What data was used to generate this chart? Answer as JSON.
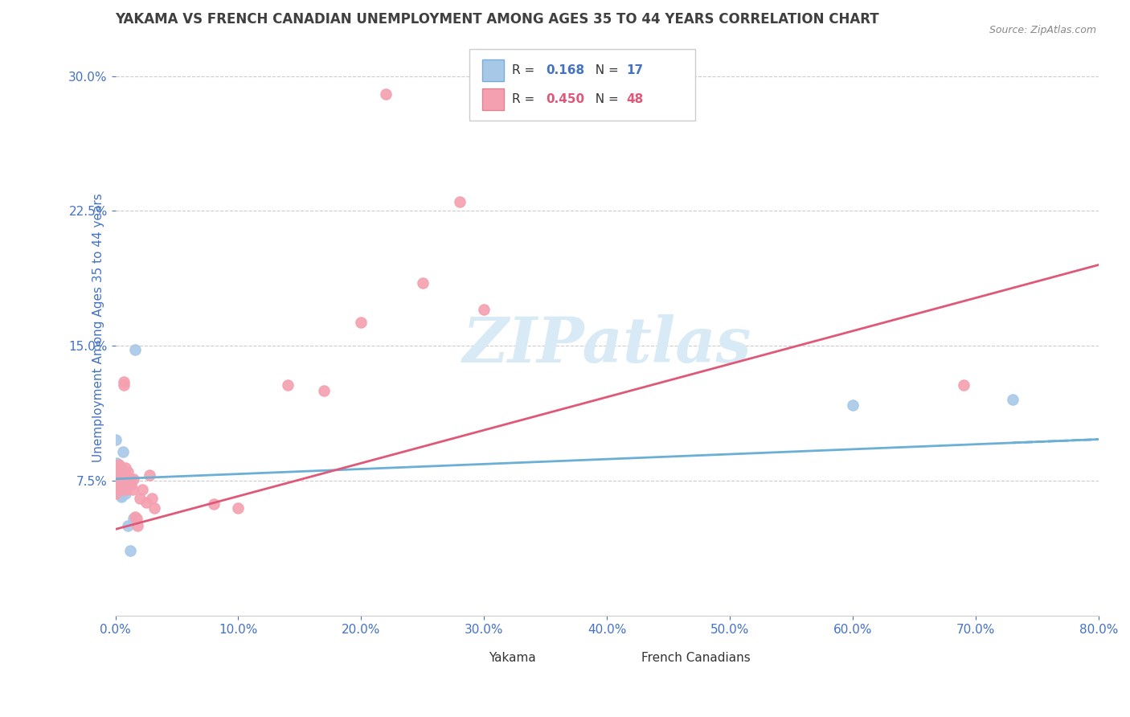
{
  "title": "YAKAMA VS FRENCH CANADIAN UNEMPLOYMENT AMONG AGES 35 TO 44 YEARS CORRELATION CHART",
  "source": "Source: ZipAtlas.com",
  "ylabel": "Unemployment Among Ages 35 to 44 years",
  "ytick_labels": [
    "7.5%",
    "15.0%",
    "22.5%",
    "30.0%"
  ],
  "ytick_values": [
    0.075,
    0.15,
    0.225,
    0.3
  ],
  "xlim": [
    0.0,
    0.8
  ],
  "ylim": [
    0.0,
    0.32
  ],
  "yakama_R": "0.168",
  "yakama_N": "17",
  "fc_R": "0.450",
  "fc_N": "48",
  "yakama_color": "#A8C8E8",
  "fc_color": "#F4A0B0",
  "trend_yakama_color": "#6BAED6",
  "trend_fc_color": "#E05878",
  "background_color": "#FFFFFF",
  "watermark_text": "ZIPatlas",
  "watermark_color": "#D8EAF5",
  "title_color": "#404040",
  "axis_label_color": "#4472C4",
  "ytick_color": "#4472C4",
  "xtick_color": "#4472C4",
  "grid_color": "#CCCCCC",
  "source_color": "#888888",
  "legend_box_color": "#CCCCCC",
  "r_value_color_blue": "#4472C4",
  "r_value_color_pink": "#E05878",
  "yakama_points_x": [
    0.0,
    0.001,
    0.002,
    0.003,
    0.003,
    0.004,
    0.005,
    0.005,
    0.006,
    0.007,
    0.008,
    0.01,
    0.012,
    0.015,
    0.016,
    0.6,
    0.73
  ],
  "yakama_points_y": [
    0.098,
    0.085,
    0.08,
    0.076,
    0.07,
    0.068,
    0.067,
    0.066,
    0.091,
    0.072,
    0.068,
    0.05,
    0.036,
    0.054,
    0.148,
    0.117,
    0.12
  ],
  "fc_points_x": [
    0.0,
    0.0,
    0.001,
    0.001,
    0.002,
    0.002,
    0.003,
    0.003,
    0.003,
    0.003,
    0.004,
    0.004,
    0.005,
    0.005,
    0.006,
    0.006,
    0.007,
    0.007,
    0.007,
    0.008,
    0.008,
    0.009,
    0.01,
    0.01,
    0.011,
    0.012,
    0.013,
    0.014,
    0.015,
    0.016,
    0.017,
    0.018,
    0.02,
    0.022,
    0.025,
    0.028,
    0.03,
    0.032,
    0.2,
    0.25,
    0.28,
    0.3,
    0.22,
    0.17,
    0.14,
    0.1,
    0.69,
    0.08
  ],
  "fc_points_y": [
    0.072,
    0.068,
    0.082,
    0.079,
    0.076,
    0.073,
    0.084,
    0.081,
    0.078,
    0.073,
    0.075,
    0.071,
    0.082,
    0.078,
    0.074,
    0.07,
    0.13,
    0.128,
    0.075,
    0.082,
    0.078,
    0.07,
    0.08,
    0.076,
    0.074,
    0.076,
    0.073,
    0.07,
    0.076,
    0.055,
    0.054,
    0.05,
    0.065,
    0.07,
    0.063,
    0.078,
    0.065,
    0.06,
    0.163,
    0.185,
    0.23,
    0.17,
    0.29,
    0.125,
    0.128,
    0.06,
    0.128,
    0.062
  ],
  "yakama_trend_x": [
    0.0,
    0.8
  ],
  "yakama_trend_y": [
    0.076,
    0.098
  ],
  "fc_trend_x": [
    0.0,
    0.8
  ],
  "fc_trend_y": [
    0.048,
    0.195
  ],
  "xtick_vals": [
    0.0,
    0.1,
    0.2,
    0.3,
    0.4,
    0.5,
    0.6,
    0.7,
    0.8
  ],
  "xtick_labels": [
    "0.0%",
    "10.0%",
    "20.0%",
    "30.0%",
    "40.0%",
    "50.0%",
    "60.0%",
    "70.0%",
    "80.0%"
  ]
}
